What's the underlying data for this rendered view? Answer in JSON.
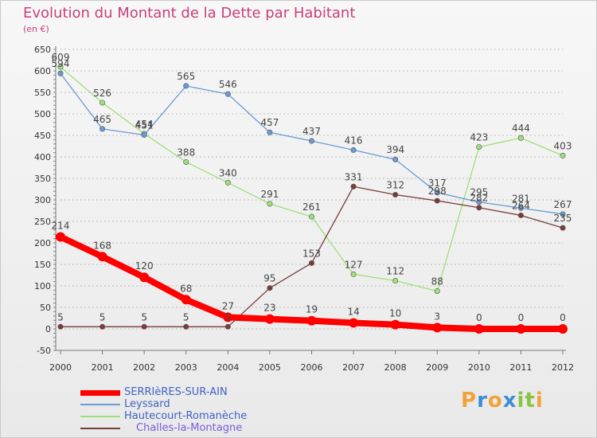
{
  "title": "Evolution du Montant de la Dette par Habitant",
  "subtitle": "(en €)",
  "logo": {
    "letters": [
      "P",
      "r",
      "o",
      "x",
      "i",
      "t",
      "i"
    ],
    "colors": [
      "#f0a33a",
      "#3d8ed6",
      "#f0a33a",
      "#3d8ed6",
      "#8ac33f",
      "#8ac33f",
      "#f0a33a"
    ]
  },
  "chart_data": {
    "type": "line",
    "title": "Evolution du Montant de la Dette par Habitant",
    "ylabel": "(en €)",
    "xlabel": "",
    "x": [
      "2000",
      "2001",
      "2002",
      "2003",
      "2004",
      "2005",
      "2006",
      "2007",
      "2008",
      "2009",
      "2010",
      "2011",
      "2012"
    ],
    "ylim": [
      -50,
      650
    ],
    "yticks": [
      -50,
      0,
      50,
      100,
      150,
      200,
      250,
      300,
      350,
      400,
      450,
      500,
      550,
      600,
      650
    ],
    "grid": "horizontal dashed",
    "legend": "bottom-left",
    "series": [
      {
        "name": "SERRIèRES-SUR-AIN",
        "color": "#ff0000",
        "values": [
          214,
          168,
          120,
          68,
          27,
          23,
          19,
          14,
          10,
          3,
          0,
          0,
          0
        ],
        "labels": [
          "214",
          "168",
          "120",
          "68",
          "27",
          "23",
          "19",
          "14",
          "10",
          "3",
          "0",
          "0",
          "0"
        ]
      },
      {
        "name": "Leyssard",
        "color": "#6b9bd2",
        "values": [
          594,
          465,
          451,
          565,
          546,
          457,
          437,
          416,
          394,
          317,
          295,
          281,
          267
        ],
        "labels": [
          "594",
          "465",
          "451",
          "565",
          "546",
          "457",
          "437",
          "416",
          "394",
          "317",
          "295",
          "281",
          "267"
        ]
      },
      {
        "name": "Hautecourt-Romanèche",
        "color": "#9ee07a",
        "values": [
          609,
          526,
          454,
          388,
          340,
          291,
          261,
          127,
          112,
          88,
          423,
          444,
          403
        ],
        "labels": [
          "609",
          "526",
          "454",
          "388",
          "340",
          "291",
          "261",
          "127",
          "112",
          "88",
          "423",
          "444",
          "403"
        ]
      },
      {
        "name": "Challes-la-Montagne",
        "color": "#7a3b3b",
        "values": [
          5,
          5,
          5,
          5,
          5,
          95,
          153,
          331,
          312,
          298,
          282,
          264,
          235
        ],
        "labels": [
          "5",
          "5",
          "5",
          "5",
          "5",
          "95",
          "153",
          "331",
          "312",
          "298",
          "282",
          "264",
          "235"
        ]
      }
    ]
  }
}
